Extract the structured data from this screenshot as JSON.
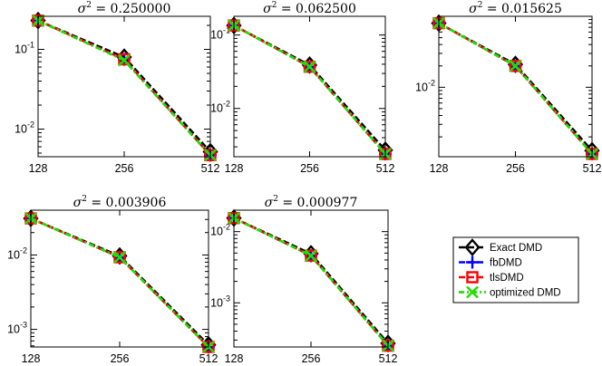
{
  "colors": {
    "exact": "#000000",
    "fb": "#0000ff",
    "tls": "#ff0000",
    "opt": "#22dd00"
  },
  "legend": {
    "entries": [
      {
        "label": "Exact DMD",
        "key": "exact",
        "marker": "diamond"
      },
      {
        "label": "fbDMD",
        "key": "fb",
        "marker": "plus"
      },
      {
        "label": "tlsDMD",
        "key": "tls",
        "marker": "square"
      },
      {
        "label": "optimized DMD",
        "key": "opt",
        "marker": "x"
      }
    ]
  },
  "chart_data": [
    {
      "type": "line",
      "title_sigma": "σ",
      "title_value": "= 0.250000",
      "x": [
        128,
        256,
        512
      ],
      "xticks": [
        "128",
        "256",
        "512"
      ],
      "yscale": "log",
      "ylim": [
        0.0045,
        0.26
      ],
      "yticks": [
        {
          "label": "10",
          "exp": "-1",
          "value": 0.1
        },
        {
          "label": "10",
          "exp": "-2",
          "value": 0.01
        }
      ],
      "series": [
        {
          "key": "exact",
          "values": [
            0.23,
            0.08,
            0.0052
          ]
        },
        {
          "key": "fb",
          "values": [
            0.23,
            0.075,
            0.0047
          ]
        },
        {
          "key": "tls",
          "values": [
            0.23,
            0.075,
            0.0047
          ]
        },
        {
          "key": "opt",
          "values": [
            0.23,
            0.073,
            0.0047
          ]
        }
      ]
    },
    {
      "type": "line",
      "title_sigma": "σ",
      "title_value": "= 0.062500",
      "x": [
        128,
        256,
        512
      ],
      "xticks": [
        "128",
        "256",
        "512"
      ],
      "yscale": "log",
      "ylim": [
        0.0022,
        0.18
      ],
      "yticks": [
        {
          "label": "10",
          "exp": "-1",
          "value": 0.1
        },
        {
          "label": "10",
          "exp": "-2",
          "value": 0.01
        }
      ],
      "series": [
        {
          "key": "exact",
          "values": [
            0.135,
            0.039,
            0.0027
          ]
        },
        {
          "key": "fb",
          "values": [
            0.135,
            0.037,
            0.0024
          ]
        },
        {
          "key": "tls",
          "values": [
            0.135,
            0.037,
            0.0024
          ]
        },
        {
          "key": "opt",
          "values": [
            0.135,
            0.037,
            0.0024
          ]
        }
      ]
    },
    {
      "type": "line",
      "title_sigma": "σ",
      "title_value": "= 0.015625",
      "x": [
        128,
        256,
        512
      ],
      "xticks": [
        "128",
        "256",
        "512"
      ],
      "yscale": "log",
      "ylim": [
        0.00105,
        0.1
      ],
      "yticks": [
        {
          "label": "10",
          "exp": "-2",
          "value": 0.01
        }
      ],
      "series": [
        {
          "key": "exact",
          "values": [
            0.08,
            0.021,
            0.00128
          ]
        },
        {
          "key": "fb",
          "values": [
            0.08,
            0.02,
            0.00115
          ]
        },
        {
          "key": "tls",
          "values": [
            0.08,
            0.02,
            0.00115
          ]
        },
        {
          "key": "opt",
          "values": [
            0.08,
            0.02,
            0.00115
          ]
        }
      ]
    },
    {
      "type": "line",
      "title_sigma": "σ",
      "title_value": "= 0.003906",
      "x": [
        128,
        256,
        512
      ],
      "xticks": [
        "128",
        "256",
        "512"
      ],
      "yscale": "log",
      "ylim": [
        0.00058,
        0.04
      ],
      "yticks": [
        {
          "label": "10",
          "exp": "-2",
          "value": 0.01
        },
        {
          "label": "10",
          "exp": "-3",
          "value": 0.001
        }
      ],
      "series": [
        {
          "key": "exact",
          "values": [
            0.031,
            0.0097,
            0.00062
          ]
        },
        {
          "key": "fb",
          "values": [
            0.031,
            0.0093,
            0.00058
          ]
        },
        {
          "key": "tls",
          "values": [
            0.031,
            0.0093,
            0.00058
          ]
        },
        {
          "key": "opt",
          "values": [
            0.031,
            0.0093,
            0.00058
          ]
        }
      ]
    },
    {
      "type": "line",
      "title_sigma": "σ",
      "title_value": "= 0.000977",
      "x": [
        128,
        256,
        512
      ],
      "xticks": [
        "128",
        "256",
        "512"
      ],
      "yscale": "log",
      "ylim": [
        0.00024,
        0.02
      ],
      "yticks": [
        {
          "label": "10",
          "exp": "-2",
          "value": 0.01
        },
        {
          "label": "10",
          "exp": "-3",
          "value": 0.001
        }
      ],
      "series": [
        {
          "key": "exact",
          "values": [
            0.0155,
            0.0049,
            0.00027
          ]
        },
        {
          "key": "fb",
          "values": [
            0.0155,
            0.0046,
            0.00025
          ]
        },
        {
          "key": "tls",
          "values": [
            0.0155,
            0.0046,
            0.00025
          ]
        },
        {
          "key": "opt",
          "values": [
            0.0155,
            0.0046,
            0.00025
          ]
        }
      ]
    }
  ]
}
